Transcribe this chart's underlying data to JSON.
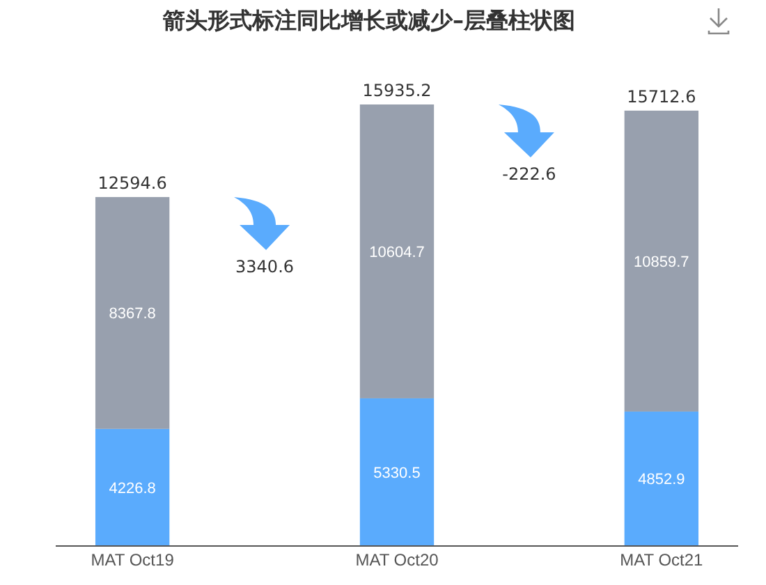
{
  "chart_data": {
    "type": "bar",
    "title": "箭头形式标注同比增长或减少–层叠柱状图",
    "stacked": true,
    "data_labels": true,
    "categories": [
      "MAT Oct19",
      "MAT Oct20",
      "MAT Oct21"
    ],
    "series": [
      {
        "color": "#5aabfd",
        "values": [
          4226.8,
          5330.5,
          4852.9
        ]
      },
      {
        "color": "#98a0ae",
        "values": [
          8367.8,
          10604.7,
          10859.7
        ]
      }
    ],
    "totals": [
      "12594.6",
      "15935.2",
      "15712.6"
    ],
    "annotations": [
      "3340.6",
      "-222.6"
    ]
  }
}
